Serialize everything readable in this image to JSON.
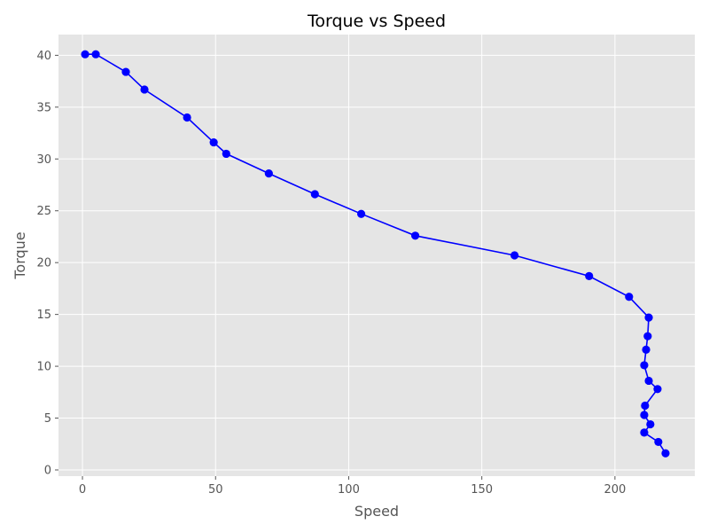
{
  "chart_data": {
    "type": "line",
    "title": "Torque vs Speed",
    "xlabel": "Speed",
    "ylabel": "Torque",
    "xlim": [
      -9,
      230
    ],
    "ylim": [
      -0.6,
      42
    ],
    "xticks": [
      0,
      50,
      100,
      150,
      200
    ],
    "yticks": [
      0,
      5,
      10,
      15,
      20,
      25,
      30,
      35,
      40
    ],
    "grid": true,
    "line_color": "#0000ff",
    "marker_color": "#0000ff",
    "background_color": "#e5e5e5",
    "series": [
      {
        "x": [
          1,
          5,
          16.3,
          23.3,
          39.3,
          49.3,
          54,
          70,
          87.3,
          104.7,
          125,
          162.3,
          190.3,
          205.3,
          212.7,
          212.3,
          211.7,
          211,
          212.7,
          216,
          211.3,
          211,
          213.3,
          211,
          216.3,
          219
        ],
        "y": [
          40.1,
          40.1,
          38.4,
          36.7,
          34.0,
          31.6,
          30.5,
          28.6,
          26.6,
          24.7,
          22.6,
          20.7,
          18.7,
          16.7,
          14.7,
          12.9,
          11.6,
          10.1,
          8.6,
          7.8,
          6.2,
          5.3,
          4.4,
          3.6,
          2.7,
          1.6
        ]
      }
    ]
  }
}
